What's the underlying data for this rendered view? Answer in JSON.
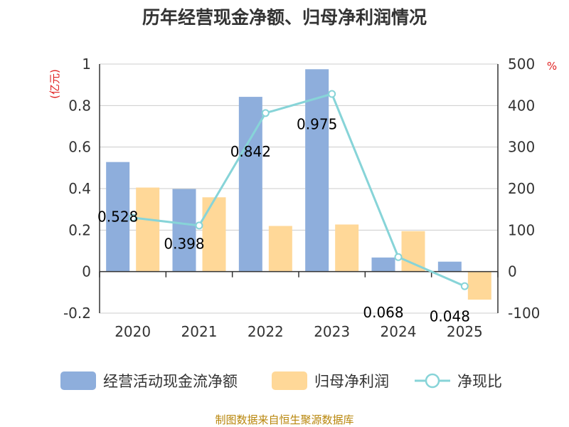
{
  "chart_data": {
    "type": "bar",
    "title": "历年经营现金净额、归母净利润情况",
    "categories": [
      "2020",
      "2021",
      "2022",
      "2023",
      "2024",
      "2025"
    ],
    "series": [
      {
        "name": "经营活动现金流净额",
        "kind": "bar",
        "axis": "left",
        "color": "#8eaedc",
        "values": [
          0.528,
          0.398,
          0.842,
          0.975,
          0.068,
          0.048
        ],
        "labels": [
          "0.528",
          "0.398",
          "0.842",
          "0.975",
          "0.068",
          "0.048"
        ]
      },
      {
        "name": "归母净利润",
        "kind": "bar",
        "axis": "left",
        "color": "#ffd898",
        "values": [
          0.405,
          0.358,
          0.22,
          0.227,
          0.195,
          -0.135
        ]
      },
      {
        "name": "净现比",
        "kind": "line",
        "axis": "right",
        "color": "#87d4d8",
        "values": [
          130,
          111,
          382,
          428,
          35,
          -35
        ]
      }
    ],
    "y_left": {
      "unit": "(亿元)",
      "min": -0.2,
      "max": 1,
      "ticks": [
        -0.2,
        0,
        0.2,
        0.4,
        0.6,
        0.8,
        1
      ],
      "tick_labels": [
        "-0.2",
        "0",
        "0.2",
        "0.4",
        "0.6",
        "0.8",
        "1"
      ]
    },
    "y_right": {
      "unit": "%",
      "min": -100,
      "max": 500,
      "ticks": [
        -100,
        0,
        100,
        200,
        300,
        400,
        500
      ],
      "tick_labels": [
        "-100",
        "0",
        "100",
        "200",
        "300",
        "400",
        "500"
      ]
    },
    "grid": true,
    "legend_position": "bottom",
    "source": "制图数据来自恒生聚源数据库"
  }
}
